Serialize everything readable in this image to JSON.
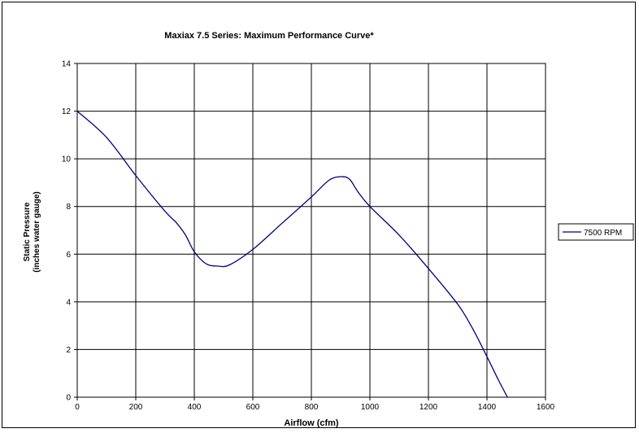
{
  "chart_data": {
    "type": "line",
    "title": "Maxiax 7.5 Series: Maximum Performance Curve*",
    "xlabel": "Airflow (cfm)",
    "ylabel_lines": [
      "Static Pressure",
      "(inches water gauge)"
    ],
    "xlim": [
      0,
      1600
    ],
    "ylim": [
      0,
      14
    ],
    "x_ticks": [
      0,
      200,
      400,
      600,
      800,
      1000,
      1200,
      1400,
      1600
    ],
    "y_ticks": [
      0,
      2,
      4,
      6,
      8,
      10,
      12,
      14
    ],
    "grid": true,
    "legend_position": "right",
    "series": [
      {
        "name": "7500 RPM",
        "color": "#000080",
        "points": [
          [
            0,
            12.0
          ],
          [
            100,
            10.9
          ],
          [
            200,
            9.3
          ],
          [
            300,
            7.8
          ],
          [
            340,
            7.3
          ],
          [
            370,
            6.8
          ],
          [
            400,
            6.1
          ],
          [
            440,
            5.6
          ],
          [
            480,
            5.5
          ],
          [
            520,
            5.55
          ],
          [
            600,
            6.2
          ],
          [
            700,
            7.3
          ],
          [
            800,
            8.4
          ],
          [
            860,
            9.1
          ],
          [
            900,
            9.25
          ],
          [
            930,
            9.15
          ],
          [
            960,
            8.6
          ],
          [
            1000,
            8.0
          ],
          [
            1100,
            6.8
          ],
          [
            1200,
            5.4
          ],
          [
            1300,
            3.9
          ],
          [
            1350,
            2.9
          ],
          [
            1400,
            1.7
          ],
          [
            1440,
            0.7
          ],
          [
            1470,
            0.0
          ]
        ]
      }
    ]
  }
}
